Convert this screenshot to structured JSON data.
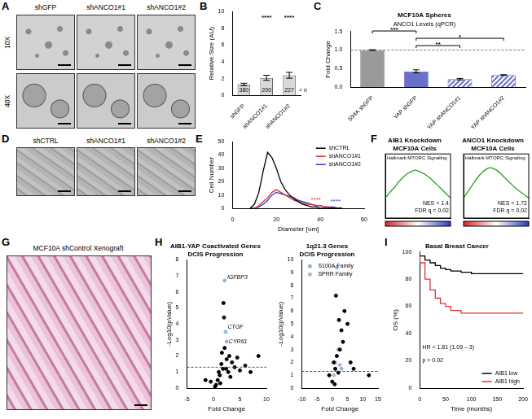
{
  "images": [
    {
      "panel": "A",
      "columns": [
        "shGFP",
        "shANCO1#1",
        "shANCO1#2"
      ],
      "rows": [
        "10X",
        "40X"
      ]
    },
    {
      "panel": "D",
      "columns": [
        "shCTRL",
        "shANCO1#1",
        "shANCO1#2"
      ]
    },
    {
      "panel": "G",
      "caption": "MCF10A shControl Xenograft"
    }
  ],
  "chart_data": [
    {
      "panel": "B",
      "type": "bar",
      "ylabel": "Relative Size (AU)",
      "categories": [
        "shGFP",
        "shANCO1#1",
        "shANCO1#2"
      ],
      "values": [
        1.3,
        2.1,
        2.4
      ],
      "error": [
        0.15,
        0.3,
        0.35
      ],
      "color": "#d9d9d9",
      "significance": [
        null,
        "****",
        "****"
      ],
      "n": [
        380,
        200,
        227
      ],
      "n_label": "= n",
      "ylim": [
        0,
        10
      ],
      "yticks": [
        0,
        2,
        4,
        6,
        8,
        10
      ],
      "grid": false
    },
    {
      "panel": "C",
      "type": "bar",
      "title": "MCF10A Spheres",
      "subtitle": "ANCO1 Levels (qPCR)",
      "ylabel": "Fold Change",
      "categories": [
        "S94A shGFP",
        "YAP shGFP",
        "YAP shANCO1#1",
        "YAP shANCO1#2"
      ],
      "values": [
        1.0,
        0.43,
        0.22,
        0.33
      ],
      "error": [
        0.01,
        0.04,
        0.02,
        0.01
      ],
      "colors": [
        "#9a9a9a",
        "#6a6fc8",
        "#6a6fc8",
        "#6a6fc8"
      ],
      "reference_line": 1.0,
      "brackets": [
        {
          "from": 1,
          "to": 2,
          "label": "**"
        },
        {
          "from": 1,
          "to": 3,
          "label": "*"
        },
        {
          "from": 0,
          "to": 1,
          "label": "***"
        }
      ],
      "ylim": [
        0,
        1.5
      ],
      "yticks": [
        {
          "value": 0,
          "label": "0.0"
        },
        0.5,
        {
          "value": 1,
          "label": "1.0"
        },
        1.5
      ],
      "grid": false
    },
    {
      "panel": "E",
      "type": "line",
      "xlabel": "Diameter [um]",
      "ylabel": "Cell Number",
      "x": [
        8,
        10,
        12,
        14,
        16,
        18,
        20,
        22,
        24,
        26,
        28,
        30,
        32,
        34,
        36,
        38,
        40,
        42,
        44,
        46,
        48,
        50
      ],
      "series": [
        {
          "name": "shCTRL",
          "color": "#000000",
          "values": [
            0,
            3,
            12,
            28,
            42,
            38,
            30,
            20,
            14,
            10,
            7,
            5,
            3,
            2,
            1,
            1,
            0,
            0,
            0,
            0,
            0,
            0
          ]
        },
        {
          "name": "shANCO1#1",
          "color": "#e03030",
          "values": [
            0,
            0,
            2,
            5,
            8,
            12,
            14,
            12,
            10,
            8,
            6,
            5,
            4,
            3,
            3,
            2,
            2,
            1,
            1,
            0,
            0,
            0
          ]
        },
        {
          "name": "shANCO1#2",
          "color": "#2b3fc7",
          "values": [
            0,
            0,
            1,
            3,
            6,
            10,
            12,
            11,
            10,
            9,
            8,
            6,
            5,
            4,
            3,
            2,
            2,
            1,
            1,
            1,
            0,
            0
          ]
        }
      ],
      "annotations": [
        {
          "text": "****",
          "x": 38,
          "y": 6,
          "color": "#e03030"
        },
        {
          "text": "****",
          "x": 47,
          "y": 5,
          "color": "#2b3fc7"
        }
      ],
      "legend": "upper right",
      "xlim": [
        0,
        60
      ],
      "xticks": [
        0,
        20,
        40,
        60
      ],
      "ylim": [
        0,
        50
      ],
      "yticks": [
        0,
        10,
        20,
        30,
        40,
        50
      ],
      "grid": false
    },
    {
      "panel": "F",
      "type": "line",
      "title": [
        "AIB1 Knockdown",
        "MCF10A Cells"
      ],
      "subtitle": "Hallmark MTORC Signaling",
      "x": [
        0,
        1,
        2,
        3,
        4,
        5,
        6,
        7,
        8,
        9,
        10,
        11,
        12,
        13,
        14,
        15,
        16,
        17,
        18,
        19,
        20
      ],
      "series": [
        {
          "color": "#2ca02c",
          "values": [
            0,
            0.05,
            0.1,
            0.14,
            0.2,
            0.24,
            0.28,
            0.31,
            0.33,
            0.35,
            0.34,
            0.32,
            0.3,
            0.27,
            0.24,
            0.2,
            0.16,
            0.12,
            0.08,
            0.04,
            0
          ]
        }
      ],
      "annotations": [
        {
          "text": "NES = 1.4",
          "x": 19.5,
          "y": -0.07
        },
        {
          "text": "FDR q = 0.02",
          "x": 19.5,
          "y": -0.16
        }
      ],
      "xlim": [
        0,
        20
      ],
      "ylim": [
        -0.25,
        0.55
      ],
      "tick_labels": false,
      "grid": false
    },
    {
      "panel": "F",
      "type": "line",
      "title": [
        "ANCO1 Knockdown",
        "MCF10A Cells"
      ],
      "subtitle": "Hallmark MTORC Signaling",
      "x": [
        0,
        1,
        2,
        3,
        4,
        5,
        6,
        7,
        8,
        9,
        10,
        11,
        12,
        13,
        14,
        15,
        16,
        17,
        18,
        19,
        20
      ],
      "series": [
        {
          "color": "#2ca02c",
          "values": [
            0,
            0.06,
            0.12,
            0.18,
            0.24,
            0.29,
            0.33,
            0.36,
            0.38,
            0.37,
            0.35,
            0.32,
            0.28,
            0.24,
            0.2,
            0.16,
            0.12,
            0.09,
            0.06,
            0.03,
            0
          ]
        }
      ],
      "annotations": [
        {
          "text": "NES = 1.72",
          "x": 19.5,
          "y": -0.07
        },
        {
          "text": "FDR q = 0.02",
          "x": 19.5,
          "y": -0.16
        }
      ],
      "xlim": [
        0,
        20
      ],
      "ylim": [
        -0.25,
        0.55
      ],
      "tick_labels": false,
      "grid": false
    },
    {
      "panel": "H",
      "type": "scatter",
      "title": [
        "AIB1-YAP Coactivated Genes",
        "DCIS Progression"
      ],
      "xlabel": "Fold Change",
      "ylabel": "-Log10(pValue)",
      "series": [
        {
          "color": "#000000",
          "marker": "circle",
          "x": [
            0.5,
            0.8,
            1.0,
            1.2,
            1.5,
            1.6,
            1.8,
            2.0,
            2.1,
            2.5,
            2.8,
            3.0,
            3.5,
            4.0,
            4.5,
            5.0,
            6.0,
            7.0,
            8.5,
            1.3,
            2.4,
            -0.5,
            -1.5,
            0.3,
            3.2,
            1.9
          ],
          "values": [
            0.2,
            0.5,
            1.0,
            0.8,
            1.5,
            2.2,
            1.2,
            4.4,
            2.5,
            1.8,
            1.0,
            2.0,
            1.6,
            1.3,
            1.9,
            1.1,
            1.4,
            1.0,
            2.0,
            0.3,
            1.2,
            0.4,
            0.5,
            0.1,
            0.7,
            5.3
          ]
        },
        {
          "color": "#8fb8e0",
          "marker": "circle",
          "x": [
            2.1,
            2.3,
            2.5
          ],
          "values": [
            6.7,
            3.5,
            2.9
          ]
        }
      ],
      "annotations": [
        {
          "text": "IGFBP3",
          "x": 2.6,
          "y": 6.9
        },
        {
          "text": "CTGF",
          "x": 2.7,
          "y": 3.8
        },
        {
          "text": "CYR61",
          "x": 2.9,
          "y": 2.9
        }
      ],
      "reference_line": 1.3,
      "xlim": [
        -5,
        10
      ],
      "xticks": [
        -5,
        0,
        5,
        10
      ],
      "ylim": [
        0,
        8
      ],
      "yticks": [
        0,
        1,
        2,
        3,
        4,
        5,
        6,
        7,
        8
      ],
      "grid": false
    },
    {
      "panel": "H",
      "type": "scatter",
      "title": [
        "1q21.3 Genes",
        "DCIS Progression"
      ],
      "xlabel": "Fold Change",
      "ylabel": "-Log10(pValue)",
      "series": [
        {
          "color": "#000000",
          "marker": "circle",
          "x": [
            -1,
            0,
            0.5,
            1,
            1.5,
            2,
            2.5,
            3,
            4,
            5,
            6,
            7,
            12,
            1.2,
            0.8,
            2.2,
            3.5
          ],
          "values": [
            1,
            0.5,
            2,
            1.5,
            2.5,
            1.2,
            3,
            4.5,
            6,
            5,
            2,
            1.5,
            1,
            7.2,
            0.3,
            5.3,
            3.6
          ]
        },
        {
          "name": "S100A Family",
          "color": "#8fb8e0",
          "marker": "circle",
          "x": [
            1.5,
            2,
            3
          ],
          "values": [
            9.4,
            3,
            1.5
          ]
        },
        {
          "name": "SPRR Family",
          "color": "#b3b7d6",
          "marker": "circle",
          "x": [
            0.5,
            1,
            2.5
          ],
          "values": [
            1,
            2,
            1.8
          ]
        }
      ],
      "reference_line": 1.3,
      "legend": "upper left",
      "xlim": [
        -10,
        15
      ],
      "xticks": [
        -10,
        -5,
        0,
        5,
        10,
        15
      ],
      "ylim": [
        0,
        10
      ],
      "yticks": [
        0,
        1,
        2,
        3,
        4,
        5,
        6,
        7,
        8,
        9,
        10
      ],
      "grid": false
    },
    {
      "panel": "I",
      "type": "line",
      "line_style": "steps",
      "title": "Basal Breast Cancer",
      "xlabel": "Time (months)",
      "ylabel": "OS (%)",
      "x": [
        0,
        10,
        20,
        30,
        40,
        50,
        60,
        80,
        100,
        120,
        150,
        200
      ],
      "series": [
        {
          "name": "AIB1 low",
          "color": "#000000",
          "values": [
            100,
            97,
            94,
            92,
            90,
            88,
            87,
            86,
            85,
            84,
            84,
            84
          ]
        },
        {
          "name": "AIB1 high",
          "color": "#e03030",
          "values": [
            100,
            92,
            80,
            72,
            66,
            62,
            60,
            57,
            55,
            55,
            55,
            55
          ]
        }
      ],
      "annotations": [
        {
          "text": "HR = 1.81 (1.09 – 3)",
          "x": 5,
          "y": 30
        },
        {
          "text": "p = 0.02",
          "x": 5,
          "y": 20
        }
      ],
      "legend": "lower right",
      "xlim": [
        0,
        200
      ],
      "xticks": [
        0,
        50,
        100,
        150,
        200
      ],
      "ylim": [
        0,
        100
      ],
      "yticks": [
        0,
        20,
        40,
        60,
        80,
        100
      ],
      "grid": false
    }
  ]
}
